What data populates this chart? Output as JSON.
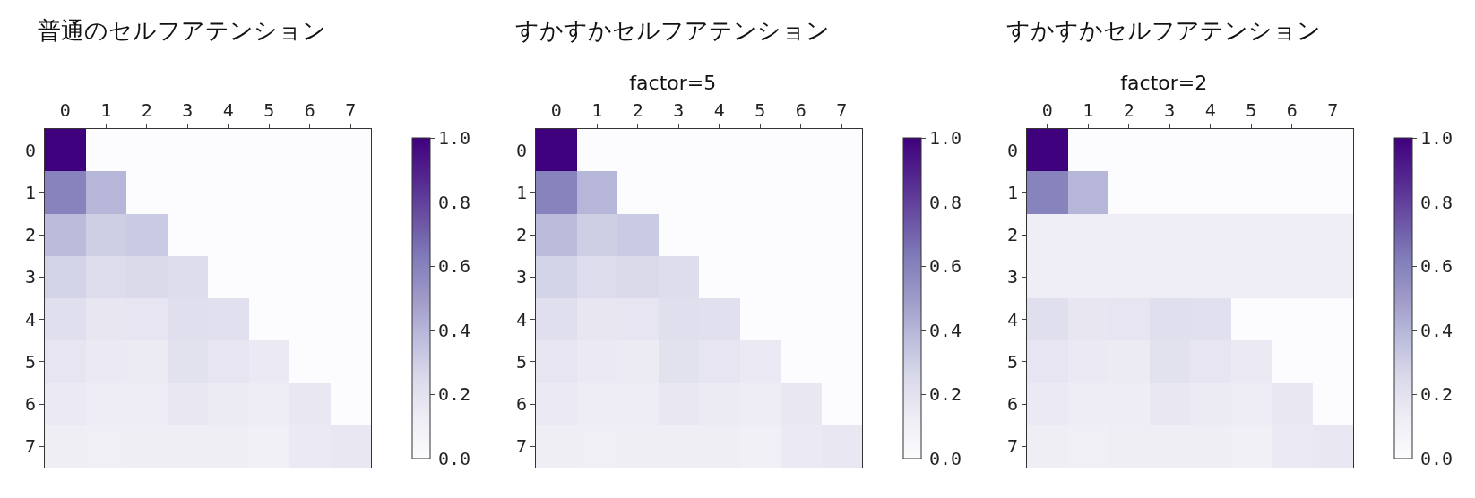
{
  "chart_data": [
    {
      "type": "heatmap",
      "title": "普通のセルフアテンション",
      "categories": [
        "0",
        "1",
        "2",
        "3",
        "4",
        "5",
        "6",
        "7"
      ],
      "y_categories": [
        "0",
        "1",
        "2",
        "3",
        "4",
        "5",
        "6",
        "7"
      ],
      "cells": [
        [
          1,
          0,
          0,
          0,
          0,
          0,
          0,
          0
        ],
        [
          0.6,
          0.4,
          0,
          0,
          0,
          0,
          0,
          0
        ],
        [
          0.38,
          0.3,
          0.32,
          0,
          0,
          0,
          0,
          0
        ],
        [
          0.28,
          0.24,
          0.25,
          0.23,
          0,
          0,
          0,
          0
        ],
        [
          0.22,
          0.17,
          0.18,
          0.22,
          0.21,
          0,
          0,
          0
        ],
        [
          0.18,
          0.15,
          0.14,
          0.2,
          0.18,
          0.15,
          0,
          0
        ],
        [
          0.15,
          0.13,
          0.13,
          0.16,
          0.14,
          0.13,
          0.16,
          0
        ],
        [
          0.12,
          0.11,
          0.12,
          0.12,
          0.12,
          0.1,
          0.15,
          0.16
        ]
      ],
      "clim": [
        0,
        1
      ],
      "cticks": [
        {
          "value": 0,
          "label": "0.0"
        },
        {
          "value": 0.2,
          "label": "0.2"
        },
        {
          "value": 0.4,
          "label": "0.4"
        },
        {
          "value": 0.6,
          "label": "0.6"
        },
        {
          "value": 0.8,
          "label": "0.8"
        },
        {
          "value": 1,
          "label": "1.0"
        }
      ]
    },
    {
      "type": "heatmap",
      "title": "すかすかセルフアテンション",
      "subtitle": "factor=5",
      "categories": [
        "0",
        "1",
        "2",
        "3",
        "4",
        "5",
        "6",
        "7"
      ],
      "y_categories": [
        "0",
        "1",
        "2",
        "3",
        "4",
        "5",
        "6",
        "7"
      ],
      "cells": [
        [
          1,
          0,
          0,
          0,
          0,
          0,
          0,
          0
        ],
        [
          0.6,
          0.4,
          0,
          0,
          0,
          0,
          0,
          0
        ],
        [
          0.38,
          0.3,
          0.32,
          0,
          0,
          0,
          0,
          0
        ],
        [
          0.28,
          0.24,
          0.25,
          0.23,
          0,
          0,
          0,
          0
        ],
        [
          0.22,
          0.17,
          0.18,
          0.22,
          0.21,
          0,
          0,
          0
        ],
        [
          0.18,
          0.15,
          0.14,
          0.2,
          0.18,
          0.15,
          0,
          0
        ],
        [
          0.15,
          0.13,
          0.13,
          0.16,
          0.14,
          0.13,
          0.16,
          0
        ],
        [
          0.12,
          0.11,
          0.12,
          0.12,
          0.12,
          0.1,
          0.15,
          0.16
        ]
      ],
      "clim": [
        0,
        1
      ],
      "cticks": [
        {
          "value": 0,
          "label": "0.0"
        },
        {
          "value": 0.2,
          "label": "0.2"
        },
        {
          "value": 0.4,
          "label": "0.4"
        },
        {
          "value": 0.6,
          "label": "0.6"
        },
        {
          "value": 0.8,
          "label": "0.8"
        },
        {
          "value": 1,
          "label": "1.0"
        }
      ]
    },
    {
      "type": "heatmap",
      "title": "すかすかセルフアテンション",
      "subtitle": "factor=2",
      "categories": [
        "0",
        "1",
        "2",
        "3",
        "4",
        "5",
        "6",
        "7"
      ],
      "y_categories": [
        "0",
        "1",
        "2",
        "3",
        "4",
        "5",
        "6",
        "7"
      ],
      "cells": [
        [
          1,
          0,
          0,
          0,
          0,
          0,
          0,
          0
        ],
        [
          0.6,
          0.4,
          0,
          0,
          0,
          0,
          0,
          0
        ],
        [
          0.125,
          0.125,
          0.125,
          0.125,
          0.125,
          0.125,
          0.125,
          0.125
        ],
        [
          0.125,
          0.125,
          0.125,
          0.125,
          0.125,
          0.125,
          0.125,
          0.125
        ],
        [
          0.22,
          0.17,
          0.18,
          0.22,
          0.21,
          0,
          0,
          0
        ],
        [
          0.18,
          0.15,
          0.14,
          0.2,
          0.18,
          0.15,
          0,
          0
        ],
        [
          0.15,
          0.13,
          0.13,
          0.16,
          0.14,
          0.13,
          0.16,
          0
        ],
        [
          0.12,
          0.11,
          0.12,
          0.12,
          0.12,
          0.1,
          0.15,
          0.16
        ]
      ],
      "clim": [
        0,
        1
      ],
      "cticks": [
        {
          "value": 0,
          "label": "0.0"
        },
        {
          "value": 0.2,
          "label": "0.2"
        },
        {
          "value": 0.4,
          "label": "0.4"
        },
        {
          "value": 0.6,
          "label": "0.6"
        },
        {
          "value": 0.8,
          "label": "0.8"
        },
        {
          "value": 1,
          "label": "1.0"
        }
      ]
    }
  ]
}
